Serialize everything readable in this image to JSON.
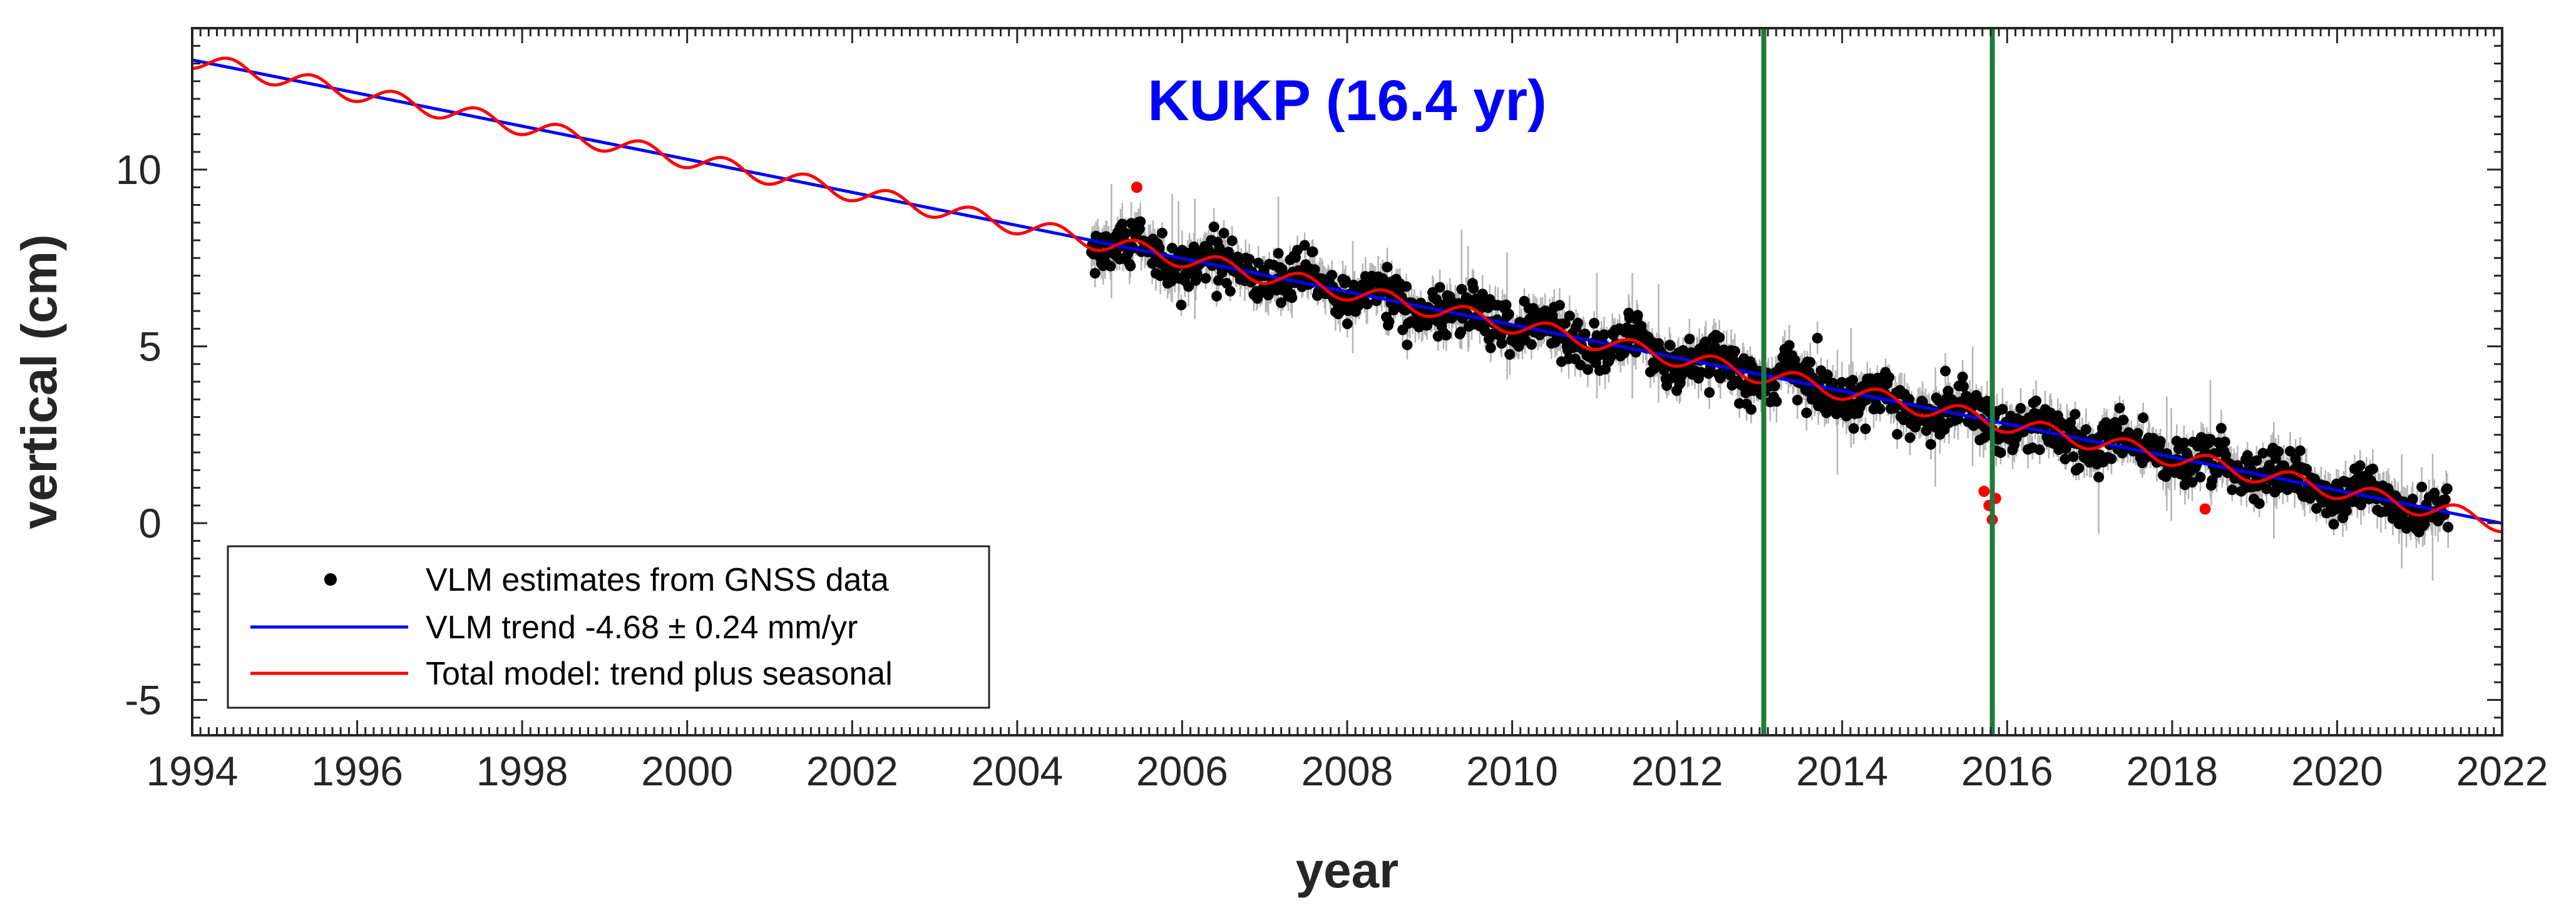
{
  "chart_data": {
    "type": "scatter",
    "title": "KUKP (16.4 yr)",
    "xlabel": "year",
    "ylabel": "vertical (cm)",
    "xlim": [
      1994,
      2022
    ],
    "ylim": [
      -6,
      14
    ],
    "x_ticks": [
      1994,
      1996,
      1998,
      2000,
      2002,
      2004,
      2006,
      2008,
      2010,
      2012,
      2014,
      2016,
      2018,
      2020,
      2022
    ],
    "y_ticks": [
      -5,
      0,
      5,
      10
    ],
    "y_tick_labels": [
      "-5",
      "0",
      "5",
      "10"
    ],
    "grid": false,
    "legend_position": "bottom-left",
    "data_start": 2004.9,
    "data_end": 2021.35,
    "trend": {
      "slope_cm_per_yr": -0.468,
      "value_at_1994": 13.1,
      "uncertainty_mm_per_yr": 0.24
    },
    "seasonal": {
      "amplitude_cm": 0.25,
      "period_yr": 1.0,
      "phase_yr": 0.2
    },
    "offsets": [
      {
        "x": 2015.8,
        "y": 0.0
      }
    ],
    "vertical_lines": [
      2013.05,
      2015.82
    ],
    "outliers": [
      {
        "x": 2005.45,
        "y": 9.5
      },
      {
        "x": 2015.72,
        "y": 0.9
      },
      {
        "x": 2015.78,
        "y": 0.5
      },
      {
        "x": 2015.82,
        "y": 0.1
      },
      {
        "x": 2015.86,
        "y": 0.7
      },
      {
        "x": 2018.4,
        "y": 0.4
      }
    ],
    "observation_summary": "Daily vertical GNSS estimates from ~2004.9 to ~2021.35 following the trend with seasonal signal, scatter about 0.3-0.5 cm, error bars about 0.3-0.6 cm",
    "series": [
      {
        "name": "VLM estimates from GNSS data",
        "kind": "points",
        "color": "#000000"
      },
      {
        "name": "VLM trend -4.68 ± 0.24 mm/yr",
        "kind": "line",
        "color": "#0000ff"
      },
      {
        "name": "Total model: trend plus seasonal",
        "kind": "line",
        "color": "#ff0000"
      }
    ],
    "colors": {
      "title": "#0000ff",
      "points": "#000000",
      "error_bars": "#b4b4b4",
      "outliers": "#ff0000",
      "trend": "#0000ff",
      "model": "#ff0000",
      "vertical_lines": "#1e7b3c",
      "axes": "#262626"
    }
  }
}
